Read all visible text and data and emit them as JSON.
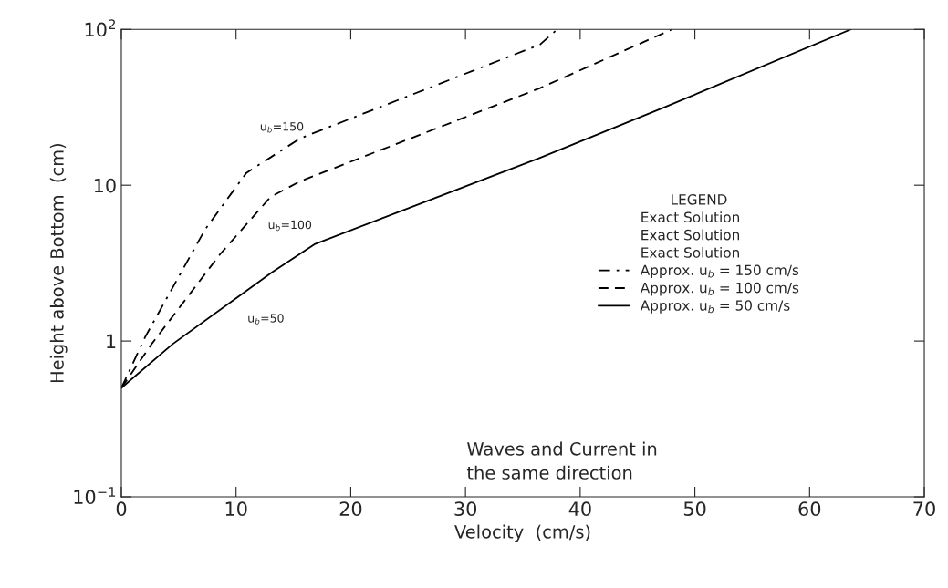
{
  "chart_data": {
    "type": "line",
    "xlabel": "Velocity  (cm/s)",
    "ylabel": "Height above Bottom  (cm)",
    "legend_title": "LEGEND",
    "log": "y",
    "xlim": [
      0,
      70
    ],
    "xticks": [
      0,
      10,
      20,
      30,
      40,
      50,
      60,
      70
    ],
    "ylim": [
      0.1,
      100
    ],
    "yticks": [
      {
        "value": 0.1,
        "label": "10$^{−1}$"
      },
      1,
      10,
      {
        "value": 100,
        "label": "10$^{2}$"
      }
    ],
    "grid": false,
    "legend": "right",
    "marker": "none",
    "series": [
      {
        "name": "Approx. u$_{b}$ = 150 cm/s",
        "color": "#000000",
        "line_style": "dashdot",
        "x": [
          0,
          2.1,
          7.3,
          10.9,
          15.6,
          36.5,
          38.0
        ],
        "values": [
          0.5,
          1.07,
          5.2,
          12,
          20,
          80,
          100
        ]
      },
      {
        "name": "Approx. u$_{b}$ = 100 cm/s",
        "color": "#000000",
        "line_style": "dashed",
        "x": [
          0,
          2.7,
          8.6,
          13.0,
          15.6,
          36.5,
          48.0
        ],
        "values": [
          0.5,
          0.97,
          3.6,
          8.4,
          10.6,
          42,
          100
        ]
      },
      {
        "name": "Approx. u$_{b}$ = 50 cm/s",
        "color": "#000000",
        "line_style": "solid",
        "x": [
          0,
          4.5,
          13.1,
          16.9,
          36.5,
          47.5,
          63.6
        ],
        "values": [
          0.5,
          0.96,
          2.75,
          4.2,
          15,
          32,
          100
        ]
      }
    ],
    "annotations": [
      "u$_{b}$=150",
      "u$_{b}$=100",
      "u$_{b}$=50",
      "Waves and Current in\nthe same direction",
      "Exact Solution",
      "Exact Solution",
      "Exact Solution"
    ]
  }
}
